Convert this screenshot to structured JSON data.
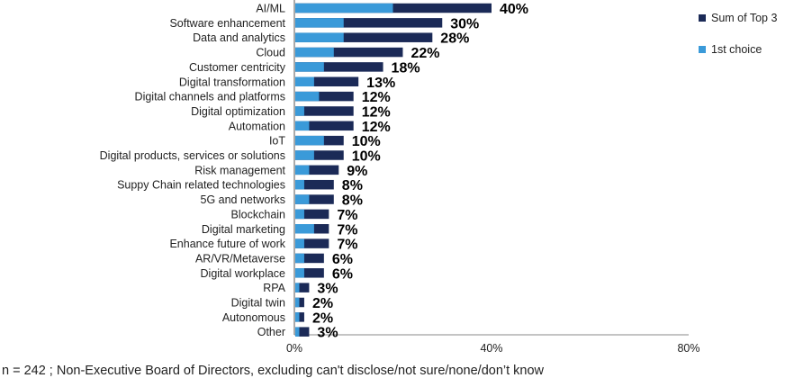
{
  "chart_data": {
    "type": "bar",
    "orientation": "horizontal",
    "categories": [
      "AI/ML",
      "Software enhancement",
      "Data and analytics",
      "Cloud",
      "Customer centricity",
      "Digital transformation",
      "Digital channels and platforms",
      "Digital optimization",
      "Automation",
      "IoT",
      "Digital products, services or solutions",
      "Risk management",
      "Suppy Chain related technologies",
      "5G and networks",
      "Blockchain",
      "Digital marketing",
      "Enhance future of work",
      "AR/VR/Metaverse",
      "Digital workplace",
      "RPA",
      "Digital twin",
      "Autonomous",
      "Other"
    ],
    "series": [
      {
        "name": "Sum of Top 3",
        "color": "#1b2a57",
        "values": [
          40,
          30,
          28,
          22,
          18,
          13,
          12,
          12,
          12,
          10,
          10,
          9,
          8,
          8,
          7,
          7,
          7,
          6,
          6,
          3,
          2,
          2,
          3
        ]
      },
      {
        "name": "1st choice",
        "color": "#3a9ad9",
        "values": [
          20,
          10,
          10,
          8,
          6,
          4,
          5,
          2,
          3,
          6,
          4,
          3,
          2,
          3,
          2,
          4,
          2,
          2,
          2,
          1,
          1,
          1,
          1
        ]
      }
    ],
    "value_labels": [
      "40%",
      "30%",
      "28%",
      "22%",
      "18%",
      "13%",
      "12%",
      "12%",
      "12%",
      "10%",
      "10%",
      "9%",
      "8%",
      "8%",
      "7%",
      "7%",
      "7%",
      "6%",
      "6%",
      "3%",
      "2%",
      "2%",
      "3%"
    ],
    "xlim": [
      0,
      80
    ],
    "xticks": [
      0,
      40,
      80
    ],
    "xtick_labels": [
      "0%",
      "40%",
      "80%"
    ],
    "legend_position": "top-right",
    "title": "",
    "xlabel": "",
    "ylabel": ""
  },
  "footnote": "n = 242 ; Non-Executive Board of Directors, excluding can't disclose/not sure/none/don’t know"
}
